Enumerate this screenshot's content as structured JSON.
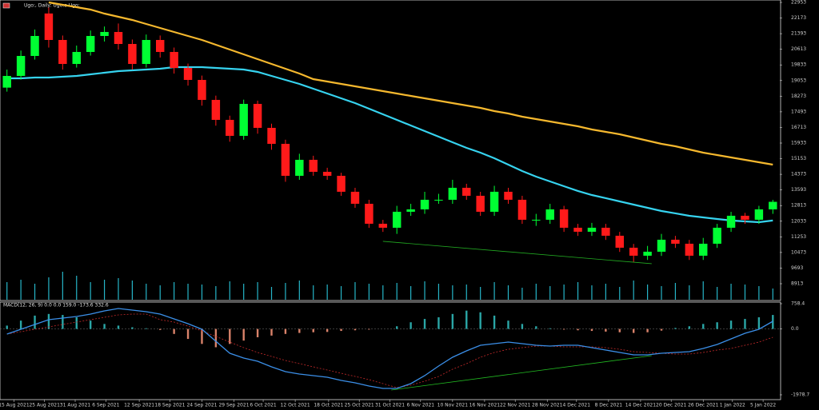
{
  "chart_data": [
    {
      "type": "candlestick",
      "title": "Ugo:, Daily: Ugo:o Ugo:",
      "xlim": [
        -0.5,
        55.5
      ],
      "ylim": [
        8115,
        23073
      ],
      "yticks": [
        22953,
        22173,
        21393,
        20613,
        19833,
        19053,
        18273,
        17493,
        16713,
        15933,
        15153,
        14373,
        13593,
        12813,
        12033,
        11253,
        10473,
        9693,
        8913
      ],
      "up_color": "#00ff33",
      "down_color": "#ff1a1a",
      "open": [
        18700,
        19284,
        20281,
        22400,
        21079,
        19882,
        20480,
        21278,
        21477,
        20879,
        19882,
        21079,
        20480,
        19683,
        19085,
        18088,
        17091,
        16293,
        17888,
        16692,
        15894,
        14299,
        15097,
        14498,
        14299,
        13502,
        12903,
        11906,
        11707,
        12504,
        12624,
        13103,
        13103,
        13701,
        13302,
        12504,
        13502,
        13103,
        12106,
        12106,
        12624,
        11707,
        11507,
        11707,
        11308,
        10710,
        10311,
        10510,
        11109,
        10909,
        10311,
        10909,
        11707,
        12305,
        12106,
        12624
      ],
      "high": [
        19600,
        20550,
        21600,
        22700,
        21300,
        20800,
        21550,
        21750,
        21900,
        21100,
        21350,
        21300,
        20700,
        19900,
        19300,
        18300,
        17300,
        18100,
        18050,
        16900,
        16100,
        15400,
        15300,
        14700,
        14450,
        13700,
        13100,
        12100,
        12800,
        12900,
        13500,
        13400,
        14100,
        13900,
        13500,
        13800,
        13700,
        13300,
        12400,
        12900,
        12800,
        11900,
        11950,
        11900,
        11500,
        10900,
        10800,
        11400,
        11300,
        11100,
        11200,
        11900,
        12500,
        12450,
        12800,
        13100
      ],
      "low": [
        18500,
        19100,
        20100,
        20700,
        19600,
        19700,
        20300,
        21000,
        20600,
        19600,
        19700,
        20200,
        19400,
        18800,
        17800,
        16800,
        16000,
        16100,
        16400,
        15600,
        14000,
        14100,
        14300,
        14100,
        13300,
        12700,
        11700,
        11500,
        11400,
        12300,
        12400,
        12900,
        12900,
        13100,
        12300,
        12300,
        12900,
        11900,
        11800,
        11900,
        11500,
        11300,
        11300,
        11100,
        10500,
        10000,
        10100,
        10300,
        10700,
        10100,
        10100,
        10700,
        11500,
        11900,
        11900,
        12400
      ],
      "close": [
        19284,
        20281,
        21278,
        21079,
        19882,
        20480,
        21278,
        21477,
        20879,
        19882,
        21079,
        20480,
        19683,
        19085,
        18088,
        17091,
        16293,
        17888,
        16692,
        15894,
        14299,
        15097,
        14498,
        14299,
        13502,
        12903,
        11906,
        11707,
        12504,
        12624,
        13103,
        13103,
        13701,
        13302,
        12504,
        13502,
        13103,
        12106,
        12106,
        12624,
        11707,
        11507,
        11707,
        11308,
        10710,
        10311,
        10510,
        11109,
        10909,
        10311,
        10909,
        11707,
        12305,
        12106,
        12624,
        13000
      ],
      "lines": [
        {
          "color": "#f5b82e",
          "values": [
            null,
            null,
            null,
            22953,
            22833,
            22714,
            22594,
            22395,
            22235,
            22076,
            21876,
            21677,
            21477,
            21278,
            21079,
            20839,
            20600,
            20361,
            20122,
            19882,
            19643,
            19404,
            19125,
            19005,
            18885,
            18766,
            18646,
            18527,
            18407,
            18287,
            18168,
            18048,
            17928,
            17809,
            17689,
            17529,
            17410,
            17250,
            17131,
            17011,
            16891,
            16772,
            16612,
            16493,
            16373,
            16213,
            16054,
            15894,
            15775,
            15615,
            15456,
            15336,
            15216,
            15097,
            14977,
            14857
          ]
        },
        {
          "color": "#36d3ef",
          "values": [
            19164,
            19164,
            19204,
            19204,
            19244,
            19284,
            19364,
            19443,
            19523,
            19563,
            19603,
            19643,
            19723,
            19723,
            19723,
            19683,
            19643,
            19603,
            19483,
            19284,
            19085,
            18885,
            18646,
            18407,
            18168,
            17928,
            17649,
            17370,
            17091,
            16812,
            16532,
            16253,
            15974,
            15695,
            15456,
            15177,
            14857,
            14538,
            14259,
            14020,
            13781,
            13542,
            13342,
            13183,
            13023,
            12863,
            12704,
            12544,
            12425,
            12305,
            12225,
            12145,
            12066,
            12026,
            11986,
            12066
          ]
        }
      ],
      "volume": {
        "color": "#26b5c8",
        "vlim": [
          0,
          120
        ],
        "values": [
          22,
          25,
          20,
          28,
          35,
          30,
          22,
          25,
          27,
          24,
          20,
          18,
          22,
          20,
          19,
          17,
          23,
          20,
          22,
          16,
          21,
          24,
          18,
          19,
          17,
          22,
          20,
          18,
          21,
          17,
          23,
          20,
          18,
          19,
          16,
          22,
          18,
          15,
          20,
          17,
          19,
          22,
          18,
          20,
          16,
          24,
          19,
          17,
          21,
          18,
          23,
          16,
          20,
          19,
          17,
          14
        ]
      },
      "trendline": {
        "color": "#22aa22",
        "x": [
          27,
          46.3
        ],
        "y": [
          11029,
          9912
        ]
      }
    },
    {
      "type": "macd",
      "title": "MACD(12, 26, 9) 0.0 0.0 159.0 -173.6 332.6",
      "xlim": [
        -0.5,
        55.5
      ],
      "ylim": [
        -2123,
        806
      ],
      "yticks": [
        758.4,
        {
          "value": 0,
          "label": "0.0"
        },
        -1978.7
      ],
      "xticks": [
        {
          "value": 0.5,
          "label": "15 Aug 2021"
        },
        {
          "value": 2.7,
          "label": "25 Aug 2021"
        },
        {
          "value": 4.9,
          "label": "31 Aug 2021"
        },
        {
          "value": 7.1,
          "label": "6 Sep 2021"
        },
        {
          "value": 9.5,
          "label": "12 Sep 2021"
        },
        {
          "value": 11.7,
          "label": "18 Sep 2021"
        },
        {
          "value": 14.0,
          "label": "24 Sep 2021"
        },
        {
          "value": 16.3,
          "label": "29 Sep 2021"
        },
        {
          "value": 18.4,
          "label": "6 Oct 2021"
        },
        {
          "value": 20.7,
          "label": "12 Oct 2021"
        },
        {
          "value": 23.1,
          "label": "18 Oct 2021"
        },
        {
          "value": 25.3,
          "label": "25 Oct 2021"
        },
        {
          "value": 27.5,
          "label": "31 Oct 2021"
        },
        {
          "value": 29.7,
          "label": "6 Nov 2021"
        },
        {
          "value": 32.0,
          "label": "10 Nov 2021"
        },
        {
          "value": 34.3,
          "label": "16 Nov 2021"
        },
        {
          "value": 36.5,
          "label": "22 Nov 2021"
        },
        {
          "value": 38.8,
          "label": "28 Nov 2021"
        },
        {
          "value": 40.9,
          "label": "4 Dec 2021"
        },
        {
          "value": 43.2,
          "label": "8 Dec 2021"
        },
        {
          "value": 45.5,
          "label": "14 Dec 2021"
        },
        {
          "value": 47.7,
          "label": "20 Dec 2021"
        },
        {
          "value": 50.0,
          "label": "26 Dec 2021"
        },
        {
          "value": 52.1,
          "label": "1 Jan 2022"
        },
        {
          "value": 54.3,
          "label": "5 Jan 2022"
        }
      ],
      "histogram": {
        "up_color": "#2aa6a6",
        "down_color": "#d9826a",
        "values": [
          100,
          250,
          400,
          450,
          420,
          350,
          250,
          150,
          100,
          50,
          20,
          -30,
          -150,
          -300,
          -450,
          -550,
          -450,
          -350,
          -250,
          -200,
          -150,
          -120,
          -100,
          -90,
          -60,
          -40,
          -20,
          0,
          80,
          200,
          300,
          350,
          450,
          550,
          500,
          400,
          250,
          150,
          80,
          20,
          -20,
          -40,
          -60,
          -80,
          -100,
          -120,
          -100,
          -50,
          30,
          80,
          150,
          200,
          250,
          300,
          350,
          420
        ]
      },
      "macd": {
        "color": "#3b8fe8",
        "values": [
          -154,
          -10,
          134,
          279,
          327,
          375,
          447,
          543,
          615,
          567,
          519,
          447,
          303,
          158,
          -10,
          -370,
          -730,
          -874,
          -970,
          -1138,
          -1282,
          -1354,
          -1402,
          -1450,
          -1546,
          -1618,
          -1714,
          -1786,
          -1786,
          -1642,
          -1402,
          -1114,
          -850,
          -658,
          -490,
          -442,
          -394,
          -442,
          -490,
          -514,
          -490,
          -490,
          -562,
          -634,
          -706,
          -778,
          -778,
          -730,
          -706,
          -682,
          -586,
          -466,
          -298,
          -130,
          -10,
          230
        ]
      },
      "signal": {
        "color": "#c42a2a",
        "values": [
          -154,
          -82,
          -10,
          62,
          134,
          206,
          279,
          351,
          423,
          447,
          447,
          279,
          206,
          86,
          -58,
          -226,
          -394,
          -562,
          -706,
          -826,
          -946,
          -1042,
          -1138,
          -1234,
          -1330,
          -1426,
          -1522,
          -1642,
          -1762,
          -1690,
          -1570,
          -1426,
          -1210,
          -1042,
          -850,
          -706,
          -610,
          -562,
          -514,
          -514,
          -538,
          -538,
          -538,
          -562,
          -610,
          -682,
          -706,
          -730,
          -754,
          -754,
          -706,
          -634,
          -586,
          -490,
          -394,
          -250
        ]
      },
      "trendline": {
        "color": "#22bb22",
        "x": [
          27.6,
          46.3
        ],
        "y": [
          -1834,
          -802
        ]
      }
    }
  ]
}
